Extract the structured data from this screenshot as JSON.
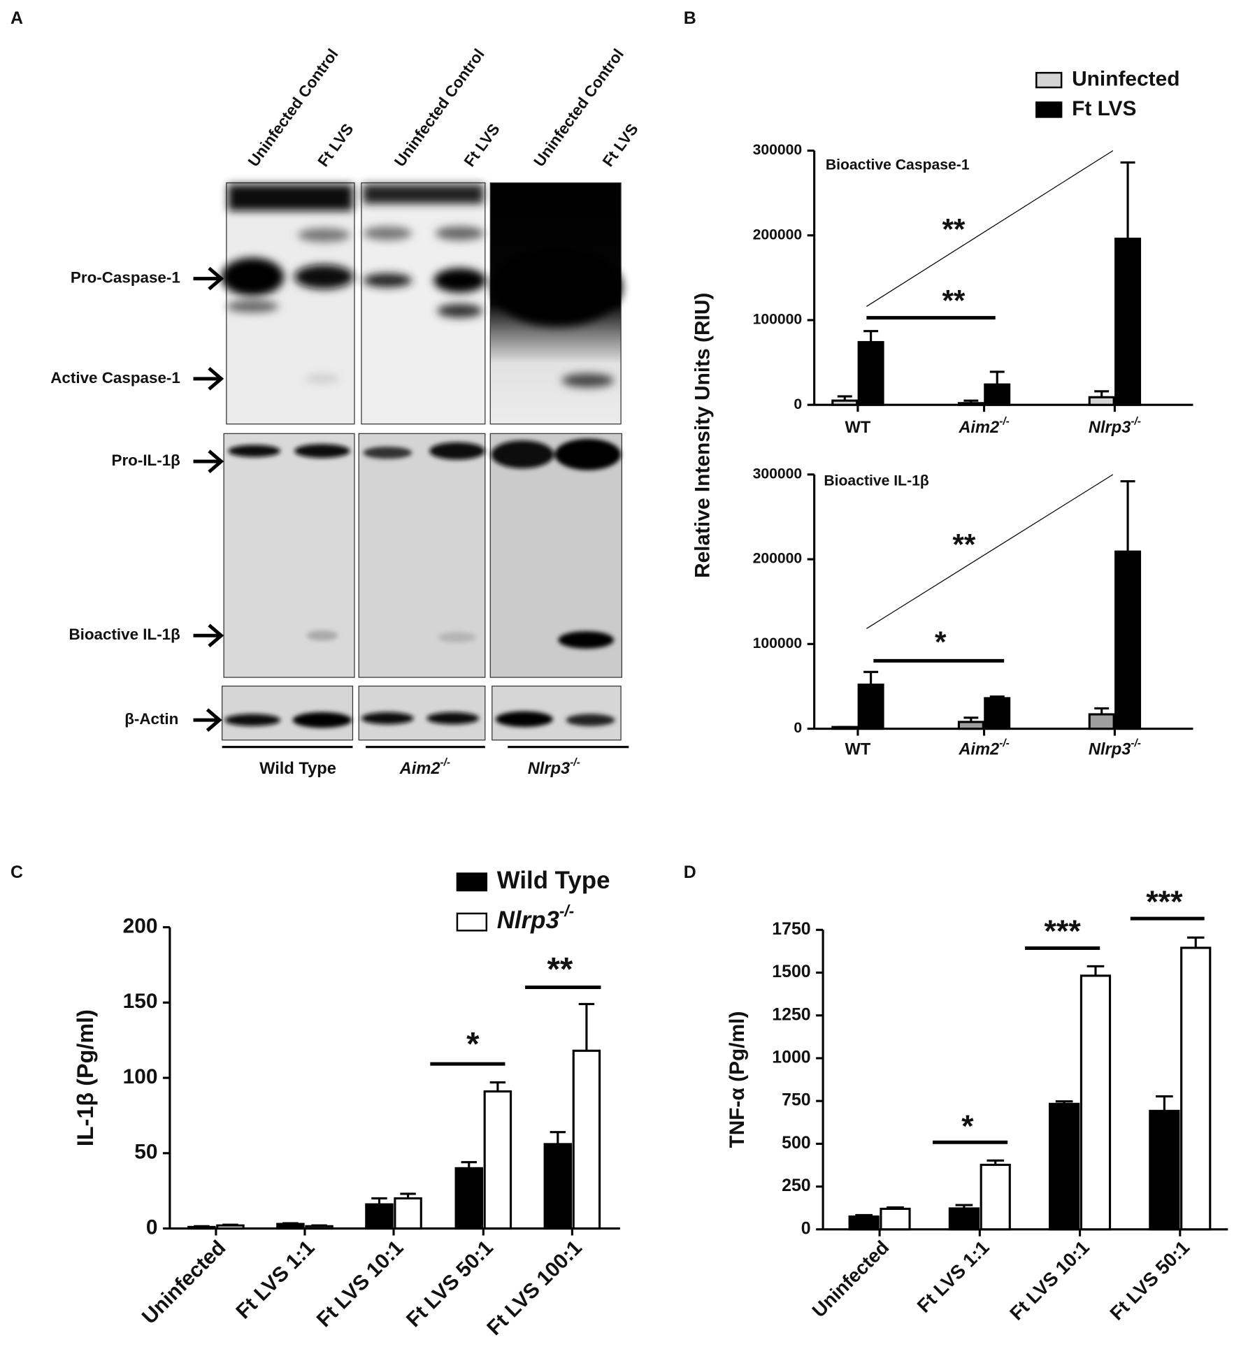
{
  "panel_labels": [
    "A",
    "B",
    "C",
    "D"
  ],
  "blot": {
    "lanes": [
      "Uninfected Control",
      "Ft LVS",
      "Uninfected Control",
      "Ft LVS",
      "Uninfected Control",
      "Ft LVS"
    ],
    "rows": [
      "Pro-Caspase-1",
      "Active Caspase-1",
      "Pro-IL-1β",
      "Bioactive IL-1β",
      "β-Actin"
    ],
    "groups": [
      "Wild Type",
      "Aim2",
      "Nlrp3"
    ],
    "group_superscripts": [
      null,
      "-/-",
      "-/-"
    ]
  },
  "chart_data": [
    {
      "type": "bar",
      "title": "Bioactive Caspase-1",
      "ylabel": "Relative Intensity Units (RIU)",
      "categories": [
        "WT",
        "Aim2",
        "Nlrp3"
      ],
      "category_superscripts": [
        null,
        "-/-",
        "-/-"
      ],
      "series": [
        {
          "name": "Uninfected",
          "color": "#d4d4d4",
          "values": [
            5000,
            2000,
            9000
          ],
          "errors": [
            5000,
            3000,
            7000
          ]
        },
        {
          "name": "Ft LVS",
          "color": "#000000",
          "values": [
            74000,
            24000,
            196000
          ],
          "errors": [
            13000,
            15000,
            90000
          ]
        }
      ],
      "ylim": [
        0,
        300000
      ],
      "yticks": [
        0,
        100000,
        200000,
        300000
      ],
      "annotations": [
        "**",
        "**"
      ],
      "legend": "top-right"
    },
    {
      "type": "bar",
      "title": "Bioactive IL-1β",
      "categories": [
        "WT",
        "Aim2",
        "Nlrp3"
      ],
      "category_superscripts": [
        null,
        "-/-",
        "-/-"
      ],
      "series": [
        {
          "color": "#9e9e9e",
          "values": [
            2000,
            8000,
            17000
          ],
          "errors": [
            0,
            5000,
            7000
          ]
        },
        {
          "color": "#000000",
          "values": [
            52000,
            36000,
            209000
          ],
          "errors": [
            15000,
            2000,
            83000
          ]
        }
      ],
      "ylim": [
        0,
        300000
      ],
      "yticks": [
        0,
        100000,
        200000,
        300000
      ],
      "annotations": [
        "**",
        "*"
      ]
    },
    {
      "type": "bar",
      "ylabel": "IL-1β (Pg/ml)",
      "categories": [
        "Uninfected",
        "Ft LVS 1:1",
        "Ft LVS 10:1",
        "Ft LVS 50:1",
        "Ft LVS 100:1"
      ],
      "series": [
        {
          "name": "Wild Type",
          "color": "#000000",
          "values": [
            1,
            3,
            16,
            40,
            56
          ],
          "errors": [
            0.5,
            0.5,
            4,
            4,
            8
          ]
        },
        {
          "name": "Nlrp3",
          "name_superscript": "-/-",
          "color": "#ffffff",
          "values": [
            2,
            1.5,
            20,
            91,
            118
          ],
          "errors": [
            0.5,
            0.5,
            3,
            6,
            31
          ]
        }
      ],
      "ylim": [
        0,
        200
      ],
      "yticks": [
        0,
        50,
        100,
        150,
        200
      ],
      "annotations": [
        "*",
        "**"
      ],
      "legend": "top-right"
    },
    {
      "type": "bar",
      "ylabel": "TNF-α (Pg/ml)",
      "categories": [
        "Uninfected",
        "Ft LVS 1:1",
        "Ft LVS 10:1",
        "Ft LVS 50:1"
      ],
      "series": [
        {
          "color": "#000000",
          "values": [
            75,
            122,
            733,
            692
          ],
          "errors": [
            8,
            20,
            15,
            85
          ]
        },
        {
          "color": "#ffffff",
          "values": [
            120,
            377,
            1482,
            1645
          ],
          "errors": [
            8,
            25,
            55,
            60
          ]
        }
      ],
      "ylim": [
        0,
        1750
      ],
      "yticks": [
        0,
        250,
        500,
        750,
        1000,
        1250,
        1500,
        1750
      ],
      "annotations": [
        "*",
        "***",
        "***"
      ]
    }
  ]
}
